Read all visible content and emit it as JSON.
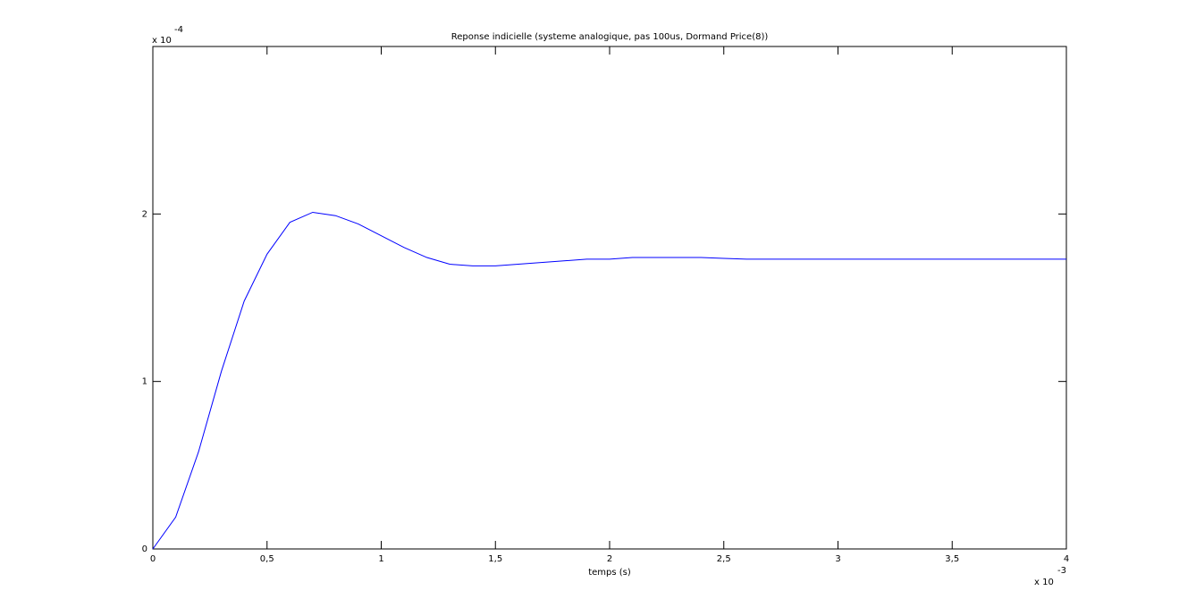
{
  "chart_data": {
    "type": "line",
    "title": "Reponse indicielle (systeme analogique, pas 100us, Dormand Price(8))",
    "x_label": "temps (s)",
    "x_multiplier": "x 10",
    "x_exponent": "-3",
    "y_multiplier": "x 10",
    "y_exponent": "-4",
    "x": [
      0,
      0.1,
      0.2,
      0.3,
      0.4,
      0.5,
      0.6,
      0.7,
      0.8,
      0.9,
      1.0,
      1.1,
      1.2,
      1.3,
      1.4,
      1.5,
      1.6,
      1.7,
      1.8,
      1.9,
      2.0,
      2.1,
      2.2,
      2.3,
      2.4,
      2.5,
      2.6,
      2.7,
      2.8,
      2.9,
      3.0,
      3.1,
      3.2,
      3.3,
      3.4,
      3.5,
      3.6,
      3.7,
      3.8,
      3.9,
      4.0
    ],
    "series": [
      {
        "color": "#0000ff",
        "values": [
          0,
          0.19,
          0.58,
          1.06,
          1.48,
          1.76,
          1.95,
          2.01,
          1.99,
          1.94,
          1.87,
          1.8,
          1.74,
          1.7,
          1.69,
          1.69,
          1.7,
          1.71,
          1.72,
          1.73,
          1.73,
          1.74,
          1.74,
          1.74,
          1.74,
          1.735,
          1.73,
          1.73,
          1.73,
          1.73,
          1.73,
          1.73,
          1.73,
          1.73,
          1.73,
          1.73,
          1.73,
          1.73,
          1.73,
          1.73,
          1.73
        ]
      }
    ],
    "xlim": [
      0,
      4
    ],
    "ylim": [
      0,
      3
    ],
    "xticks": [
      0,
      {
        "value": 0.5,
        "label": "0,5"
      },
      1,
      {
        "value": 1.5,
        "label": "1,5"
      },
      2,
      {
        "value": 2.5,
        "label": "2,5"
      },
      3,
      {
        "value": 3.5,
        "label": "3,5"
      },
      4
    ],
    "yticks": [
      0,
      1,
      2
    ],
    "grid": false
  }
}
